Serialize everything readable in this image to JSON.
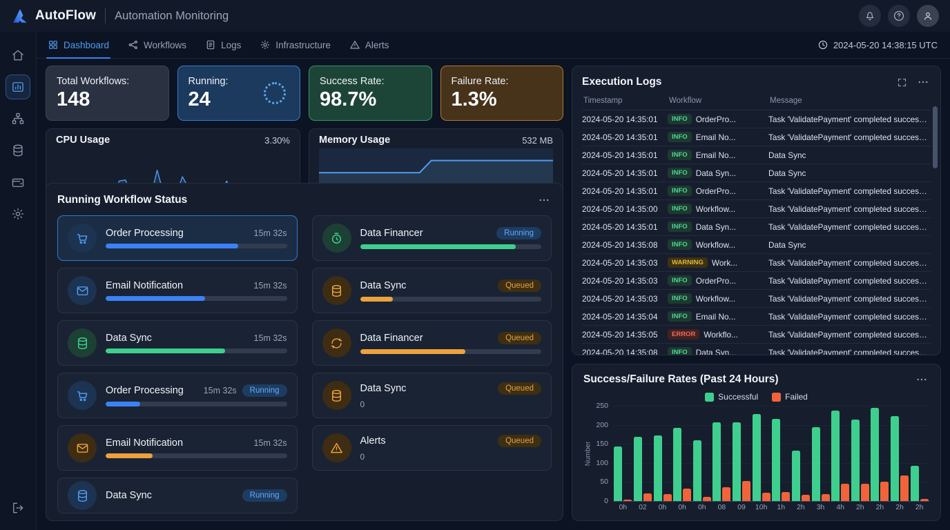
{
  "header": {
    "brand": "AutoFlow",
    "subtitle": "Automation Monitoring"
  },
  "nav": {
    "tabs": [
      {
        "label": "Dashboard",
        "active": true
      },
      {
        "label": "Workflows",
        "active": false
      },
      {
        "label": "Logs",
        "active": false
      },
      {
        "label": "Infrastructure",
        "active": false
      },
      {
        "label": "Alerts",
        "active": false
      }
    ],
    "timestamp": "2024-05-20 14:38:15 UTC"
  },
  "stats": [
    {
      "label": "Total Workflows:",
      "value": "148",
      "variant": "default"
    },
    {
      "label": "Running:",
      "value": "24",
      "variant": "running",
      "spinner": true
    },
    {
      "label": "Success Rate:",
      "value": "98.7%",
      "variant": "success"
    },
    {
      "label": "Failure Rate:",
      "value": "1.3%",
      "variant": "failure"
    }
  ],
  "usage": {
    "cpu": {
      "title": "CPU Usage",
      "value": "3.30%",
      "spark": [
        14,
        34,
        18,
        14,
        14,
        15,
        18,
        32,
        16,
        16,
        48,
        50,
        18,
        24,
        40,
        18,
        68,
        26,
        44,
        22,
        56,
        34,
        24,
        18,
        22,
        18,
        24,
        48,
        16,
        13,
        26,
        20,
        24,
        18,
        38,
        30,
        18,
        20
      ]
    },
    "memory": {
      "title": "Memory Usage",
      "value": "532 MB",
      "line": [
        [
          0,
          40
        ],
        [
          43,
          40
        ],
        [
          48,
          20
        ],
        [
          100,
          20
        ]
      ]
    }
  },
  "workflows_panel": {
    "title": "Running Workflow Status",
    "cards": [
      {
        "name": "Order Processing",
        "icon": "cart-icon",
        "tint": "blue",
        "time": "15m 32s",
        "badge": null,
        "progress": 73,
        "bar": "blue",
        "highlight": true
      },
      {
        "name": "Data Financer",
        "icon": "timer-icon",
        "tint": "green",
        "badge": "Running",
        "badge_style": "running",
        "progress": 86,
        "bar": "green"
      },
      {
        "name": "Email Notification",
        "icon": "mail-icon",
        "tint": "blue",
        "time": "15m 32s",
        "progress": 55,
        "bar": "blue"
      },
      {
        "name": "Data Sync",
        "icon": "database-icon",
        "tint": "orange",
        "badge": "Queued",
        "badge_style": "queued",
        "progress": 18,
        "bar": "orange"
      },
      {
        "name": "Data Sync",
        "icon": "database-icon",
        "tint": "green",
        "time": "15m 32s",
        "progress": 66,
        "bar": "green"
      },
      {
        "name": "Data Financer",
        "icon": "sync-icon",
        "tint": "orange",
        "badge": "Queued",
        "badge_style": "queued",
        "progress": 58,
        "bar": "orange"
      },
      {
        "name": "Order Processing",
        "icon": "cart-icon",
        "tint": "blue",
        "time": "15m 32s",
        "badge": "Running",
        "badge_style": "running",
        "progress": 19,
        "bar": "blue"
      },
      {
        "name": "Data Sync",
        "icon": "database-icon",
        "tint": "orange",
        "sub": "0",
        "badge": "Queued",
        "badge_style": "queued"
      },
      {
        "name": "Email Notification",
        "icon": "mail-icon",
        "tint": "orange",
        "time": "15m 32s",
        "progress": 26,
        "bar": "orange"
      },
      {
        "name": "Alerts",
        "icon": "warning-icon",
        "tint": "orange",
        "sub": "0",
        "badge": "Queued",
        "badge_style": "queued"
      },
      {
        "name": "Data Sync",
        "icon": "database-icon",
        "tint": "blue",
        "badge": "Running",
        "badge_style": "running",
        "compact": true
      }
    ]
  },
  "logs_panel": {
    "title": "Execution Logs",
    "columns": [
      "Timestamp",
      "Workflow",
      "Message"
    ],
    "rows": [
      {
        "timestamp": "2024-05-20 14:35:01",
        "level": "INFO",
        "workflow": "OrderPro...",
        "message": "Task 'ValidatePayment' completed successfully."
      },
      {
        "timestamp": "2024-05-20 14:35:01",
        "level": "INFO",
        "workflow": "Email No...",
        "message": "Task 'ValidatePayment' completed successfully."
      },
      {
        "timestamp": "2024-05-20 14:35:01",
        "level": "INFO",
        "workflow": "Email No...",
        "message": "Data Sync"
      },
      {
        "timestamp": "2024-05-20 14:35:01",
        "level": "INFO",
        "workflow": "Data Syn...",
        "message": "Data Sync"
      },
      {
        "timestamp": "2024-05-20 14:35:01",
        "level": "INFO",
        "workflow": "OrderPro...",
        "message": "Task 'ValidatePayment' completed successfully."
      },
      {
        "timestamp": "2024-05-20 14:35:00",
        "level": "INFO",
        "workflow": "Workflow...",
        "message": "Task 'ValidatePayment' completed successfully."
      },
      {
        "timestamp": "2024-05-20 14:35:01",
        "level": "INFO",
        "workflow": "Data Syn...",
        "message": "Task 'ValidatePayment' completed successfully."
      },
      {
        "timestamp": "2024-05-20 14:35:08",
        "level": "INFO",
        "workflow": "Workflow...",
        "message": "Data Sync"
      },
      {
        "timestamp": "2024-05-20 14:35:03",
        "level": "WARNING",
        "workflow": "Work...",
        "message": "Task 'ValidatePayment' completed successfully."
      },
      {
        "timestamp": "2024-05-20 14:35:03",
        "level": "INFO",
        "workflow": "OrderPro...",
        "message": "Task 'ValidatePayment' completed successfully."
      },
      {
        "timestamp": "2024-05-20 14:35:03",
        "level": "INFO",
        "workflow": "Workflow...",
        "message": "Task 'ValidatePayment' completed successfully."
      },
      {
        "timestamp": "2024-05-20 14:35:04",
        "level": "INFO",
        "workflow": "Email No...",
        "message": "Task 'ValidatePayment' completed successfully."
      },
      {
        "timestamp": "2024-05-20 14:35:05",
        "level": "ERROR",
        "workflow": "Workflo...",
        "message": "Task 'ValidatePayment' completed successfully."
      },
      {
        "timestamp": "2024-05-20 14:35:08",
        "level": "INFO",
        "workflow": "Data Syn...",
        "message": "Task 'ValidatePayment' completed successfully."
      }
    ]
  },
  "chart_panel": {
    "title": "Success/Failure Rates (Past 24 Hours)"
  },
  "chart_data": {
    "type": "bar",
    "categories": [
      "0h",
      "02",
      "0h",
      "0h",
      "0h",
      "08",
      "09",
      "10h",
      "1h",
      "2h",
      "3h",
      "4h",
      "2h",
      "2h",
      "2h",
      "2h"
    ],
    "series": [
      {
        "name": "Successful",
        "color": "#3ecf8e",
        "values": [
          143,
          168,
          172,
          192,
          160,
          207,
          207,
          228,
          215,
          132,
          193,
          238,
          213,
          245,
          223,
          93
        ]
      },
      {
        "name": "Failed",
        "color": "#f2633a",
        "values": [
          3,
          20,
          19,
          33,
          11,
          37,
          52,
          22,
          23,
          16,
          18,
          45,
          46,
          50,
          67,
          5
        ]
      }
    ],
    "title": "Success/Failure Rates (Past 24 Hours)",
    "xlabel": "",
    "ylabel": "Number",
    "ylim": [
      0,
      250
    ],
    "yticks": [
      0,
      50,
      100,
      150,
      200,
      250
    ],
    "legend_position": "top",
    "grid": true
  },
  "colors": {
    "accent_blue": "#3b82f6",
    "green": "#3ecf8e",
    "orange": "#eda23c",
    "failed": "#f2633a"
  }
}
